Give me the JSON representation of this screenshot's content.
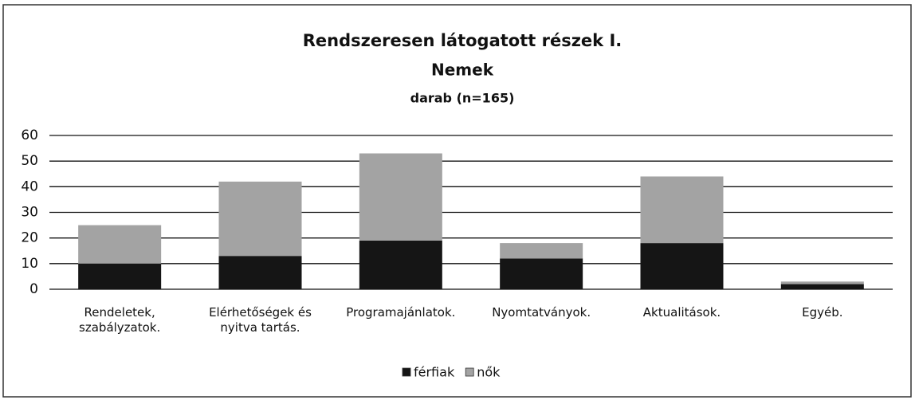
{
  "chart_data": {
    "type": "bar",
    "stacked": true,
    "title": "Rendszeresen látogatott részek I.",
    "subtitle": "Nemek",
    "unit_label": "darab (n=165)",
    "categories": [
      "Rendeletek, szabályzatok.",
      "Elérhetőségek és nyitva tartás.",
      "Programajánlatok.",
      "Nyomtatványok.",
      "Aktualitások.",
      "Egyéb."
    ],
    "series": [
      {
        "name": "férfiak",
        "color": "#151515",
        "values": [
          10,
          13,
          19,
          12,
          18,
          2
        ]
      },
      {
        "name": "nők",
        "color": "#a3a3a3",
        "values": [
          15,
          29,
          34,
          6,
          26,
          1
        ]
      }
    ],
    "ylim": [
      0,
      60
    ],
    "yticks": [
      0,
      10,
      20,
      30,
      40,
      50,
      60
    ],
    "grid": true,
    "legend": "bottom"
  }
}
